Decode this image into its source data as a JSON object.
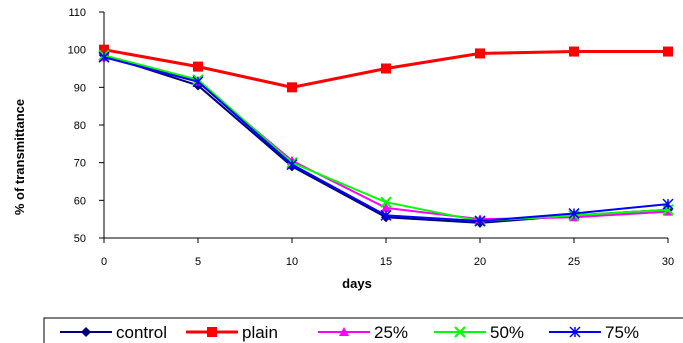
{
  "chart_data": {
    "type": "line",
    "x": [
      0,
      5,
      10,
      15,
      20,
      25,
      30
    ],
    "xlabel": "days",
    "ylabel": "% of transmittance",
    "xlim": [
      0,
      30
    ],
    "ylim": [
      50,
      110
    ],
    "xticks": [
      "0",
      "5",
      "10",
      "15",
      "20",
      "25",
      "30"
    ],
    "yticks": [
      "50",
      "60",
      "70",
      "80",
      "90",
      "100",
      "110"
    ],
    "grid": false,
    "legend_position": "bottom",
    "series": [
      {
        "name": "control",
        "color": "#000080",
        "marker": "diamond",
        "values": [
          98.5,
          90.5,
          69,
          55.5,
          54,
          56,
          57.5
        ]
      },
      {
        "name": "plain",
        "color": "#ff0000",
        "marker": "square",
        "values": [
          100,
          95.5,
          90,
          95,
          99,
          99.5,
          99.5
        ]
      },
      {
        "name": "25%",
        "color": "#ff00ff",
        "marker": "triangle",
        "values": [
          98,
          91.5,
          70.5,
          58,
          55,
          55.5,
          57
        ]
      },
      {
        "name": "50%",
        "color": "#00ff00",
        "marker": "x",
        "values": [
          98.5,
          92,
          70,
          59.5,
          54.5,
          56,
          57.5
        ]
      },
      {
        "name": "75%",
        "color": "#0000ff",
        "marker": "star",
        "values": [
          98,
          91.5,
          69.5,
          56,
          54.5,
          56.5,
          59
        ]
      }
    ]
  }
}
